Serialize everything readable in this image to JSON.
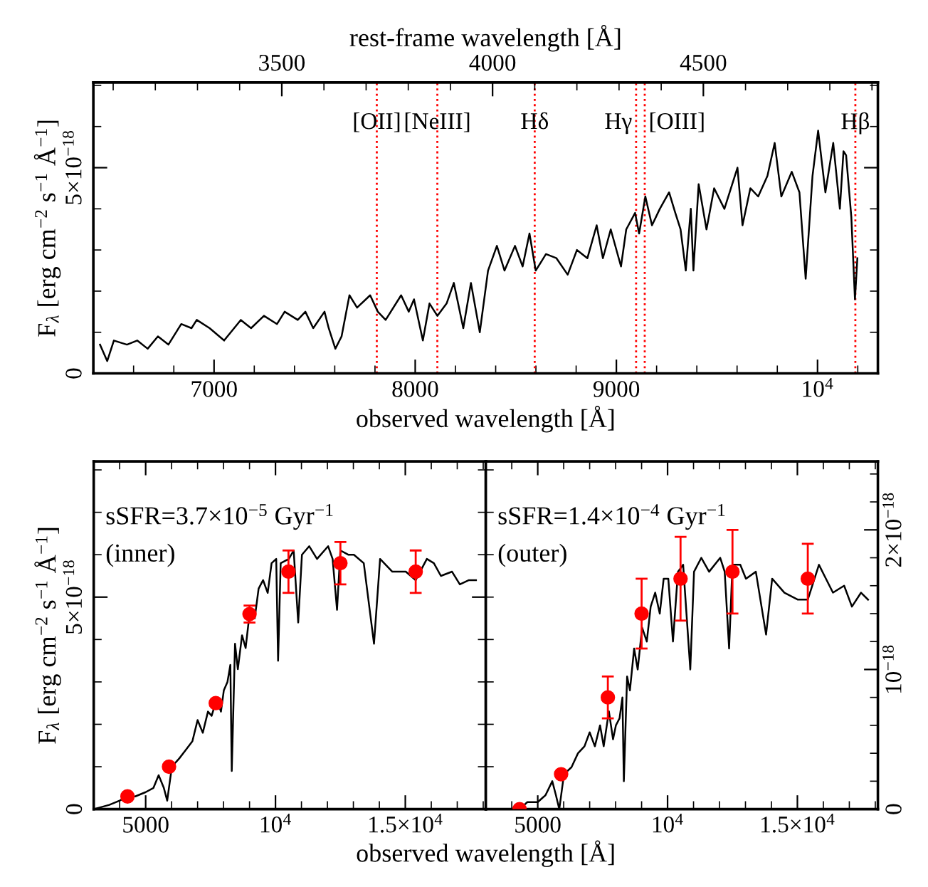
{
  "chart_data": [
    {
      "type": "line",
      "xlabel": "observed wavelength [Å]",
      "x2label": "rest-frame wavelength [Å]",
      "ylabel": "F$_{λ}$ [erg cm$^{−2}$ s$^{−1}$ Å$^{−1}$]",
      "xlim": [
        6400,
        10300
      ],
      "xticks": [
        {
          "value": 6400,
          "label": null
        },
        {
          "value": 6600,
          "label": null
        },
        {
          "value": 6800,
          "label": null
        },
        7000,
        {
          "value": 7200,
          "label": null
        },
        {
          "value": 7400,
          "label": null
        },
        {
          "value": 7600,
          "label": null
        },
        {
          "value": 7800,
          "label": null
        },
        8000,
        {
          "value": 8200,
          "label": null
        },
        {
          "value": 8400,
          "label": null
        },
        {
          "value": 8600,
          "label": null
        },
        {
          "value": 8800,
          "label": null
        },
        9000,
        {
          "value": 9200,
          "label": null
        },
        {
          "value": 9400,
          "label": null
        },
        {
          "value": 9600,
          "label": null
        },
        {
          "value": 9800,
          "label": null
        },
        {
          "value": 10000,
          "label": "10$^{4}$"
        },
        {
          "value": 10200,
          "label": null
        }
      ],
      "x2lim": [
        3053,
        4914
      ],
      "x2ticks": [
        {
          "value": 3100,
          "label": null
        },
        {
          "value": 3200,
          "label": null
        },
        {
          "value": 3300,
          "label": null
        },
        {
          "value": 3400,
          "label": null
        },
        3500,
        {
          "value": 3600,
          "label": null
        },
        {
          "value": 3700,
          "label": null
        },
        {
          "value": 3800,
          "label": null
        },
        {
          "value": 3900,
          "label": null
        },
        4000,
        {
          "value": 4100,
          "label": null
        },
        {
          "value": 4200,
          "label": null
        },
        {
          "value": 4300,
          "label": null
        },
        {
          "value": 4400,
          "label": null
        },
        4500,
        {
          "value": 4600,
          "label": null
        },
        {
          "value": 4700,
          "label": null
        },
        {
          "value": 4800,
          "label": null
        },
        {
          "value": 4900,
          "label": null
        }
      ],
      "ylim": [
        0,
        7.07e-18
      ],
      "yticks": [
        0,
        {
          "value": 1e-18,
          "label": null
        },
        {
          "value": 2e-18,
          "label": null
        },
        {
          "value": 3e-18,
          "label": null
        },
        {
          "value": 4e-18,
          "label": null
        },
        {
          "value": 5e-18,
          "label": "5×10$^{−18}$"
        },
        {
          "value": 6e-18,
          "label": null
        },
        {
          "value": 7e-18,
          "label": null
        }
      ],
      "ref_lines": [
        {
          "axis": "x",
          "value": 7809,
          "label": "[OII]",
          "color": "#ff0000",
          "line_style": "dotted"
        },
        {
          "axis": "x",
          "value": 8110,
          "label": "[NeIII]",
          "color": "#ff0000",
          "line_style": "dotted"
        },
        {
          "axis": "x",
          "value": 8594,
          "label": "Hδ",
          "color": "#ff0000",
          "line_style": "dotted"
        },
        {
          "axis": "x",
          "value": 9098,
          "label": "Hγ",
          "color": "#ff0000",
          "line_style": "dotted"
        },
        {
          "axis": "x",
          "value": 9141,
          "label": "[OIII]",
          "color": "#ff0000",
          "line_style": "dotted"
        },
        {
          "axis": "x",
          "value": 10188,
          "label": "Hβ",
          "color": "#ff0000",
          "line_style": "dotted"
        }
      ],
      "series": [
        {
          "color": "#000000",
          "marker": "none",
          "x": [
            6433,
            6469,
            6502,
            6567,
            6618,
            6670,
            6721,
            6773,
            6837,
            6888,
            6914,
            6978,
            7050,
            7133,
            7184,
            7248,
            7313,
            7351,
            7416,
            7454,
            7493,
            7549,
            7570,
            7603,
            7634,
            7673,
            7711,
            7776,
            7814,
            7853,
            7930,
            7968,
            7994,
            8038,
            8071,
            8110,
            8156,
            8192,
            8239,
            8277,
            8321,
            8362,
            8406,
            8444,
            8496,
            8534,
            8568,
            8599,
            8650,
            8702,
            8758,
            8804,
            8856,
            8902,
            8933,
            8972,
            9023,
            9049,
            9093,
            9113,
            9144,
            9177,
            9216,
            9262,
            9293,
            9319,
            9345,
            9370,
            9383,
            9409,
            9448,
            9486,
            9537,
            9602,
            9627,
            9666,
            9705,
            9751,
            9787,
            9820,
            9872,
            9910,
            9941,
            9975,
            10003,
            10039,
            10078,
            10111,
            10129,
            10142,
            10168,
            10186,
            10198
          ],
          "values": [
            7e-19,
            3e-19,
            8e-19,
            7e-19,
            8e-19,
            6e-19,
            9e-19,
            7e-19,
            1.2e-18,
            1.1e-18,
            1.3e-18,
            1.1e-18,
            8e-19,
            1.3e-18,
            1.1e-18,
            1.4e-18,
            1.2e-18,
            1.5e-18,
            1.3e-18,
            1.5e-18,
            1.1e-18,
            1.5e-18,
            1.1e-18,
            6e-19,
            9e-19,
            1.9e-18,
            1.6e-18,
            1.9e-18,
            1.5e-18,
            1.3e-18,
            1.9e-18,
            1.5e-18,
            1.8e-18,
            8e-19,
            1.7e-18,
            1.4e-18,
            1.7e-18,
            2.2e-18,
            1.1e-18,
            2.2e-18,
            1e-18,
            2.5e-18,
            3.1e-18,
            2.5e-18,
            3.1e-18,
            2.6e-18,
            3.4e-18,
            2.5e-18,
            2.9e-18,
            2.8e-18,
            2.4e-18,
            3e-18,
            2.8e-18,
            3.6e-18,
            2.8e-18,
            3.5e-18,
            2.6e-18,
            3.5e-18,
            3.9e-18,
            3.4e-18,
            4.3e-18,
            3.6e-18,
            4e-18,
            4.4e-18,
            3.9e-18,
            3.5e-18,
            2.5e-18,
            4e-18,
            2.5e-18,
            4.6e-18,
            3.5e-18,
            4.5e-18,
            4e-18,
            5e-18,
            3.6e-18,
            4.5e-18,
            4.3e-18,
            4.8e-18,
            5.6e-18,
            4.3e-18,
            4.9e-18,
            4.4e-18,
            2.3e-18,
            4.8e-18,
            5.9e-18,
            4.4e-18,
            5.6e-18,
            4e-18,
            5.4e-18,
            5.3e-18,
            3.8e-18,
            1.8e-18,
            2.8e-18
          ]
        }
      ]
    },
    {
      "type": "line",
      "xlabel": "observed wavelength [Å]",
      "ylabel": "F$_{λ}$ [erg cm$^{−2}$ s$^{−1}$ Å$^{−1}$]",
      "annotations": [
        "sSFR=3.7×10$^{−5}$ Gyr$^{−1}$",
        "(inner)"
      ],
      "xlim": [
        3000,
        18100
      ],
      "xticks": [
        {
          "value": 3000,
          "label": null
        },
        {
          "value": 4000,
          "label": null
        },
        5000,
        {
          "value": 6000,
          "label": null
        },
        {
          "value": 7000,
          "label": null
        },
        {
          "value": 8000,
          "label": null
        },
        {
          "value": 9000,
          "label": null
        },
        {
          "value": 10000,
          "label": "10$^{4}$"
        },
        {
          "value": 11000,
          "label": null
        },
        {
          "value": 12000,
          "label": null
        },
        {
          "value": 13000,
          "label": null
        },
        {
          "value": 14000,
          "label": null
        },
        {
          "value": 15000,
          "label": "1.5×10$^{4}$"
        },
        {
          "value": 16000,
          "label": null
        },
        {
          "value": 17000,
          "label": null
        },
        {
          "value": 18000,
          "label": null
        }
      ],
      "ylim": [
        0,
        8.2e-18
      ],
      "yticks": [
        0,
        {
          "value": 1e-18,
          "label": null
        },
        {
          "value": 2e-18,
          "label": null
        },
        {
          "value": 3e-18,
          "label": null
        },
        {
          "value": 4e-18,
          "label": null
        },
        {
          "value": 5e-18,
          "label": "5×10$^{−18}$"
        },
        {
          "value": 6e-18,
          "label": null
        },
        {
          "value": 7e-18,
          "label": null
        },
        {
          "value": 8e-18,
          "label": null
        }
      ],
      "series": [
        {
          "color": "#000000",
          "marker": "none",
          "x": [
            3000,
            3600,
            4000,
            4300,
            4600,
            5000,
            5300,
            5500,
            5700,
            5830,
            6010,
            6300,
            6550,
            6800,
            7000,
            7200,
            7400,
            7540,
            7740,
            7900,
            8010,
            8150,
            8262,
            8316,
            8442,
            8550,
            8712,
            8850,
            9019,
            9200,
            9350,
            9523,
            9700,
            9850,
            10028,
            10100,
            10200,
            10514,
            10700,
            10875,
            11019,
            11300,
            11600,
            12028,
            12200,
            12370,
            12500,
            12800,
            13019,
            13400,
            13794,
            14028,
            14500,
            15019,
            15400,
            15830,
            16100,
            16370,
            16800,
            17100,
            17451,
            17722
          ],
          "values": [
            0.0,
            1e-19,
            2e-19,
            3e-19,
            3e-19,
            4e-19,
            5e-19,
            8e-19,
            5e-19,
            2e-19,
            1e-18,
            1.2e-18,
            1.4e-18,
            1.6e-18,
            2.1e-18,
            1.8e-18,
            2.3e-18,
            2.2e-18,
            2.6e-18,
            2.3e-18,
            2.8e-18,
            3e-18,
            3.4e-18,
            9e-19,
            3.9e-18,
            3.3e-18,
            4.1e-18,
            3.8e-18,
            4.7e-18,
            4.5e-18,
            5.2e-18,
            5.4e-18,
            5.1e-18,
            5.8e-18,
            5.9e-18,
            3.5e-18,
            5.8e-18,
            5.9e-18,
            6.1e-18,
            4.4e-18,
            6e-18,
            6.2e-18,
            5.9e-18,
            6.2e-18,
            5.9e-18,
            4.7e-18,
            6.1e-18,
            6e-18,
            6e-18,
            5.8e-18,
            3.9e-18,
            5.9e-18,
            5.6e-18,
            5.6e-18,
            5.4e-18,
            5.9e-18,
            5.8e-18,
            5.5e-18,
            5.6e-18,
            5.3e-18,
            5.4e-18,
            5.4e-18
          ]
        },
        {
          "type": "scatter",
          "color": "#ff0000",
          "marker": "circle",
          "x": [
            4300,
            5900,
            7700,
            9000,
            10500,
            12500,
            15400
          ],
          "values": [
            3e-19,
            1e-18,
            2.5e-18,
            4.6e-18,
            5.6e-18,
            5.8e-18,
            5.6e-18
          ],
          "errors": [
            null,
            null,
            null,
            2e-19,
            5e-19,
            5e-19,
            5e-19
          ]
        }
      ]
    },
    {
      "type": "line",
      "tick_labels": "x",
      "annotations": [
        "sSFR=1.4×10$^{−4}$ Gyr$^{−1}$",
        "(outer)"
      ],
      "xlim": [
        3000,
        18100
      ],
      "xticks": [
        {
          "value": 3000,
          "label": null
        },
        {
          "value": 4000,
          "label": null
        },
        5000,
        {
          "value": 6000,
          "label": null
        },
        {
          "value": 7000,
          "label": null
        },
        {
          "value": 8000,
          "label": null
        },
        {
          "value": 9000,
          "label": null
        },
        {
          "value": 10000,
          "label": "10$^{4}$"
        },
        {
          "value": 11000,
          "label": null
        },
        {
          "value": 12000,
          "label": null
        },
        {
          "value": 13000,
          "label": null
        },
        {
          "value": 14000,
          "label": null
        },
        {
          "value": 15000,
          "label": "1.5×10$^{4}$"
        },
        {
          "value": 16000,
          "label": null
        },
        {
          "value": 17000,
          "label": null
        },
        {
          "value": 18000,
          "label": null
        }
      ],
      "ylim": [
        0,
        8.2e-18
      ],
      "yticks": [
        {
          "value": 0,
          "label": null
        },
        {
          "value": 1e-18,
          "label": null
        },
        {
          "value": 2e-18,
          "label": null
        },
        {
          "value": 3e-18,
          "label": null
        },
        {
          "value": 4e-18,
          "label": null
        },
        {
          "value": 5e-18,
          "label": null
        },
        {
          "value": 6e-18,
          "label": null
        },
        {
          "value": 7e-18,
          "label": null
        },
        {
          "value": 8e-18,
          "label": null
        }
      ],
      "y2lim": [
        0,
        2.49e-18
      ],
      "y2ticks": [
        {
          "value": 0,
          "label": "0"
        },
        {
          "value": 2e-19,
          "label": null
        },
        {
          "value": 4e-19,
          "label": null
        },
        {
          "value": 6e-19,
          "label": null
        },
        {
          "value": 8e-19,
          "label": null
        },
        {
          "value": 1e-18,
          "label": "10$^{−18}$"
        },
        {
          "value": 1.2e-18,
          "label": null
        },
        {
          "value": 1.4e-18,
          "label": null
        },
        {
          "value": 1.6e-18,
          "label": null
        },
        {
          "value": 1.8e-18,
          "label": null
        },
        {
          "value": 2e-18,
          "label": "2×10$^{−18}$"
        },
        {
          "value": 2.2e-18,
          "label": null
        },
        {
          "value": 2.4e-18,
          "label": null
        }
      ],
      "series": [
        {
          "color": "#000000",
          "marker": "none",
          "axis": "y2",
          "x": [
            3000,
            3600,
            4000,
            4300,
            4600,
            5000,
            5300,
            5560,
            5700,
            5830,
            6010,
            6300,
            6550,
            6800,
            7000,
            7200,
            7400,
            7540,
            7740,
            7900,
            8010,
            8150,
            8262,
            8316,
            8442,
            8550,
            8712,
            8850,
            9019,
            9200,
            9350,
            9523,
            9700,
            9850,
            10028,
            10208,
            10400,
            10600,
            10875,
            11019,
            11300,
            11600,
            12028,
            12200,
            12370,
            12500,
            12800,
            13019,
            13400,
            13794,
            14028,
            14500,
            15019,
            15400,
            15830,
            16100,
            16370,
            16800,
            17100,
            17451,
            17722
          ],
          "values": [
            0.0,
            0.0,
            0.0,
            0.0,
            5e-20,
            5e-20,
            1e-19,
            2e-19,
            1e-19,
            0.0,
            2.5e-19,
            3e-19,
            4e-19,
            4.5e-19,
            5.5e-19,
            4.5e-19,
            6e-19,
            4.5e-19,
            7e-19,
            5e-19,
            6e-19,
            6.5e-19,
            8e-19,
            2e-19,
            9.5e-19,
            8.5e-19,
            1.15e-18,
            1e-18,
            1.3e-18,
            1.2e-18,
            1.45e-18,
            1.55e-18,
            1.4e-18,
            1.65e-18,
            1.65e-18,
            1.2e-18,
            1.7e-18,
            1.75e-18,
            1e-18,
            1.7e-18,
            1.8e-18,
            1.7e-18,
            1.8e-18,
            1.7e-18,
            1.15e-18,
            1.75e-18,
            1.75e-18,
            1.65e-18,
            1.7e-18,
            1.25e-18,
            1.65e-18,
            1.55e-18,
            1.5e-18,
            1.5e-18,
            1.75e-18,
            1.65e-18,
            1.55e-18,
            1.6e-18,
            1.45e-18,
            1.55e-18,
            1.5e-18
          ]
        },
        {
          "type": "scatter",
          "color": "#ff0000",
          "marker": "circle",
          "axis": "y2",
          "x": [
            4300,
            5900,
            7700,
            9000,
            10500,
            12500,
            15400
          ],
          "values": [
            0.0,
            2.5e-19,
            8e-19,
            1.4e-18,
            1.65e-18,
            1.7e-18,
            1.65e-18
          ],
          "errors": [
            null,
            null,
            1.5e-19,
            2.5e-19,
            3e-19,
            3e-19,
            2.5e-19
          ]
        }
      ]
    }
  ]
}
